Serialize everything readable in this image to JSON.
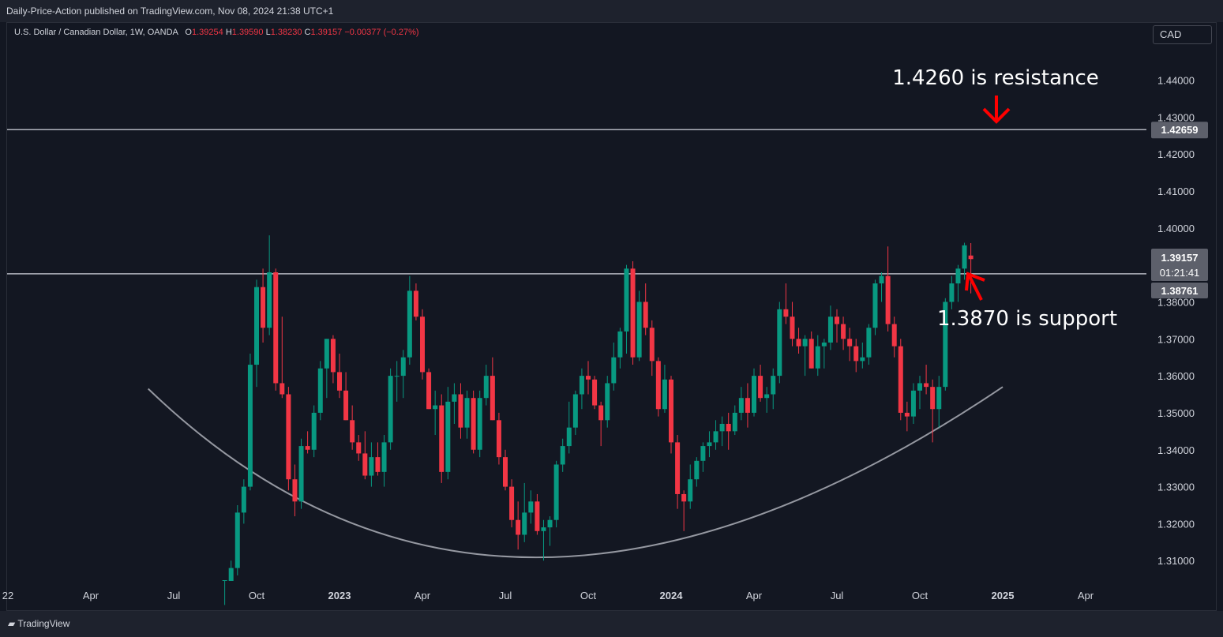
{
  "header": {
    "publish_line": "Daily-Price-Action published on TradingView.com, Nov 08, 2024 21:38 UTC+1"
  },
  "symbol": {
    "name": "U.S. Dollar / Canadian Dollar, 1W, OANDA",
    "ohlc": [
      {
        "key": "O",
        "value": "1.39254"
      },
      {
        "key": "H",
        "value": "1.39590"
      },
      {
        "key": "L",
        "value": "1.38230"
      },
      {
        "key": "C",
        "value": "1.39157"
      }
    ],
    "change": "−0.00377 (−0.27%)"
  },
  "currency_button": "CAD",
  "footer": {
    "brand": "TradingView"
  },
  "colors": {
    "up": "#089981",
    "down": "#f23645",
    "background": "#131722",
    "level_line": "#b2b5be",
    "arrow": "#ff0000",
    "curve": "#9598a1"
  },
  "chart_data": {
    "type": "candlestick",
    "title": "U.S. Dollar / Canadian Dollar, 1W, OANDA",
    "ylim": [
      1.3045,
      1.4495
    ],
    "y_ticks": [
      "1.44000",
      "1.43000",
      "1.42000",
      "1.41000",
      "1.40000",
      "1.38000",
      "1.37000",
      "1.36000",
      "1.35000",
      "1.34000",
      "1.33000",
      "1.32000",
      "1.31000"
    ],
    "y_tick_values": [
      1.44,
      1.43,
      1.42,
      1.41,
      1.4,
      1.38,
      1.37,
      1.36,
      1.35,
      1.34,
      1.33,
      1.32,
      1.31
    ],
    "x_ticks": [
      "22",
      "Apr",
      "Jul",
      "Oct",
      "2023",
      "Apr",
      "Jul",
      "Oct",
      "2024",
      "Apr",
      "Jul",
      "Oct",
      "2025",
      "Apr"
    ],
    "x_tick_weeks": [
      0,
      13,
      26,
      39,
      52,
      65,
      78,
      91,
      104,
      117,
      130,
      143,
      156,
      169
    ],
    "bold_x_ticks": [
      "2023",
      "2024",
      "2025"
    ],
    "price_labels": {
      "resistance": "1.42659",
      "last_price": "1.39157",
      "countdown": "01:21:41",
      "support": "1.38761"
    },
    "horizontal_levels": [
      1.4266,
      1.3876
    ],
    "annotations": {
      "resistance_text": "1.4260 is resistance",
      "support_text": "1.3870 is support"
    },
    "curve": {
      "start": [
        22,
        1.3565
      ],
      "control": [
        77,
        1.265
      ],
      "end": [
        156,
        1.357
      ]
    },
    "candles_start_week": 34,
    "candles": [
      [
        1.278,
        1.298,
        1.277,
        1.296
      ],
      [
        1.296,
        1.31,
        1.294,
        1.308
      ],
      [
        1.308,
        1.325,
        1.306,
        1.323
      ],
      [
        1.323,
        1.332,
        1.32,
        1.33
      ],
      [
        1.33,
        1.366,
        1.329,
        1.363
      ],
      [
        1.363,
        1.386,
        1.357,
        1.384
      ],
      [
        1.384,
        1.389,
        1.369,
        1.373
      ],
      [
        1.373,
        1.398,
        1.371,
        1.388
      ],
      [
        1.388,
        1.389,
        1.356,
        1.358
      ],
      [
        1.358,
        1.376,
        1.354,
        1.355
      ],
      [
        1.355,
        1.357,
        1.329,
        1.332
      ],
      [
        1.332,
        1.336,
        1.322,
        1.326
      ],
      [
        1.326,
        1.343,
        1.324,
        1.341
      ],
      [
        1.341,
        1.345,
        1.339,
        1.34
      ],
      [
        1.34,
        1.352,
        1.338,
        1.35
      ],
      [
        1.35,
        1.364,
        1.348,
        1.362
      ],
      [
        1.362,
        1.37,
        1.354,
        1.37
      ],
      [
        1.37,
        1.371,
        1.358,
        1.361
      ],
      [
        1.361,
        1.366,
        1.354,
        1.356
      ],
      [
        1.356,
        1.361,
        1.348,
        1.348
      ],
      [
        1.348,
        1.352,
        1.34,
        1.342
      ],
      [
        1.342,
        1.344,
        1.337,
        1.339
      ],
      [
        1.339,
        1.345,
        1.332,
        1.333
      ],
      [
        1.333,
        1.342,
        1.33,
        1.338
      ],
      [
        1.338,
        1.342,
        1.333,
        1.334
      ],
      [
        1.334,
        1.344,
        1.33,
        1.342
      ],
      [
        1.342,
        1.362,
        1.34,
        1.36
      ],
      [
        1.36,
        1.364,
        1.353,
        1.36
      ],
      [
        1.36,
        1.367,
        1.354,
        1.365
      ],
      [
        1.365,
        1.387,
        1.363,
        1.383
      ],
      [
        1.383,
        1.385,
        1.375,
        1.376
      ],
      [
        1.376,
        1.378,
        1.359,
        1.361
      ],
      [
        1.361,
        1.362,
        1.351,
        1.351
      ],
      [
        1.351,
        1.356,
        1.344,
        1.352
      ],
      [
        1.352,
        1.355,
        1.331,
        1.334
      ],
      [
        1.334,
        1.357,
        1.332,
        1.353
      ],
      [
        1.353,
        1.358,
        1.347,
        1.355
      ],
      [
        1.355,
        1.358,
        1.343,
        1.346
      ],
      [
        1.346,
        1.356,
        1.343,
        1.354
      ],
      [
        1.354,
        1.356,
        1.339,
        1.34
      ],
      [
        1.34,
        1.356,
        1.338,
        1.354
      ],
      [
        1.354,
        1.363,
        1.352,
        1.36
      ],
      [
        1.36,
        1.365,
        1.348,
        1.348
      ],
      [
        1.348,
        1.35,
        1.336,
        1.338
      ],
      [
        1.338,
        1.34,
        1.329,
        1.33
      ],
      [
        1.33,
        1.332,
        1.319,
        1.321
      ],
      [
        1.321,
        1.326,
        1.313,
        1.317
      ],
      [
        1.317,
        1.331,
        1.315,
        1.323
      ],
      [
        1.323,
        1.329,
        1.32,
        1.326
      ],
      [
        1.326,
        1.328,
        1.317,
        1.318
      ],
      [
        1.318,
        1.321,
        1.31,
        1.319
      ],
      [
        1.319,
        1.322,
        1.314,
        1.321
      ],
      [
        1.321,
        1.337,
        1.319,
        1.336
      ],
      [
        1.336,
        1.343,
        1.334,
        1.341
      ],
      [
        1.341,
        1.353,
        1.339,
        1.346
      ],
      [
        1.346,
        1.356,
        1.344,
        1.355
      ],
      [
        1.355,
        1.362,
        1.351,
        1.36
      ],
      [
        1.36,
        1.364,
        1.355,
        1.359
      ],
      [
        1.359,
        1.36,
        1.351,
        1.352
      ],
      [
        1.352,
        1.353,
        1.341,
        1.348
      ],
      [
        1.348,
        1.36,
        1.346,
        1.358
      ],
      [
        1.358,
        1.369,
        1.356,
        1.365
      ],
      [
        1.365,
        1.373,
        1.362,
        1.372
      ],
      [
        1.372,
        1.39,
        1.366,
        1.389
      ],
      [
        1.389,
        1.391,
        1.363,
        1.365
      ],
      [
        1.365,
        1.383,
        1.364,
        1.38
      ],
      [
        1.38,
        1.385,
        1.371,
        1.373
      ],
      [
        1.373,
        1.375,
        1.36,
        1.364
      ],
      [
        1.364,
        1.365,
        1.349,
        1.351
      ],
      [
        1.351,
        1.363,
        1.35,
        1.359
      ],
      [
        1.359,
        1.36,
        1.339,
        1.342
      ],
      [
        1.342,
        1.344,
        1.324,
        1.328
      ],
      [
        1.328,
        1.329,
        1.318,
        1.326
      ],
      [
        1.326,
        1.336,
        1.324,
        1.332
      ],
      [
        1.332,
        1.338,
        1.33,
        1.337
      ],
      [
        1.337,
        1.342,
        1.334,
        1.341
      ],
      [
        1.341,
        1.345,
        1.338,
        1.342
      ],
      [
        1.342,
        1.348,
        1.34,
        1.345
      ],
      [
        1.345,
        1.349,
        1.341,
        1.347
      ],
      [
        1.347,
        1.35,
        1.34,
        1.345
      ],
      [
        1.345,
        1.352,
        1.344,
        1.35
      ],
      [
        1.35,
        1.357,
        1.348,
        1.354
      ],
      [
        1.354,
        1.358,
        1.346,
        1.35
      ],
      [
        1.35,
        1.362,
        1.349,
        1.36
      ],
      [
        1.36,
        1.363,
        1.353,
        1.354
      ],
      [
        1.354,
        1.357,
        1.35,
        1.355
      ],
      [
        1.355,
        1.362,
        1.351,
        1.36
      ],
      [
        1.36,
        1.38,
        1.358,
        1.378
      ],
      [
        1.378,
        1.385,
        1.374,
        1.376
      ],
      [
        1.376,
        1.38,
        1.368,
        1.37
      ],
      [
        1.37,
        1.373,
        1.366,
        1.368
      ],
      [
        1.368,
        1.371,
        1.36,
        1.37
      ],
      [
        1.37,
        1.372,
        1.362,
        1.362
      ],
      [
        1.362,
        1.371,
        1.36,
        1.368
      ],
      [
        1.368,
        1.37,
        1.362,
        1.369
      ],
      [
        1.369,
        1.379,
        1.367,
        1.376
      ],
      [
        1.376,
        1.378,
        1.369,
        1.374
      ],
      [
        1.374,
        1.376,
        1.367,
        1.37
      ],
      [
        1.37,
        1.373,
        1.364,
        1.368
      ],
      [
        1.368,
        1.37,
        1.361,
        1.364
      ],
      [
        1.364,
        1.369,
        1.362,
        1.365
      ],
      [
        1.365,
        1.374,
        1.363,
        1.373
      ],
      [
        1.373,
        1.386,
        1.371,
        1.385
      ],
      [
        1.385,
        1.388,
        1.38,
        1.387
      ],
      [
        1.387,
        1.395,
        1.372,
        1.374
      ],
      [
        1.374,
        1.376,
        1.365,
        1.368
      ],
      [
        1.368,
        1.37,
        1.348,
        1.35
      ],
      [
        1.35,
        1.353,
        1.345,
        1.349
      ],
      [
        1.349,
        1.358,
        1.347,
        1.356
      ],
      [
        1.356,
        1.36,
        1.351,
        1.358
      ],
      [
        1.358,
        1.363,
        1.355,
        1.357
      ],
      [
        1.357,
        1.359,
        1.342,
        1.351
      ],
      [
        1.351,
        1.36,
        1.346,
        1.357
      ],
      [
        1.357,
        1.381,
        1.356,
        1.38
      ],
      [
        1.38,
        1.387,
        1.378,
        1.385
      ],
      [
        1.385,
        1.39,
        1.38,
        1.389
      ],
      [
        1.389,
        1.396,
        1.386,
        1.3953
      ],
      [
        1.39254,
        1.3959,
        1.3823,
        1.39157
      ]
    ]
  }
}
